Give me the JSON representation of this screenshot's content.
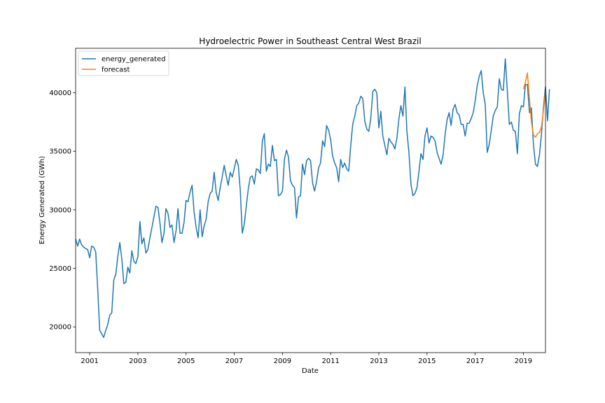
{
  "chart_data": {
    "type": "line",
    "title": "Hydroelectric Power in Southeast Central West Brazil",
    "xlabel": "Date",
    "ylabel": "Energy Generated (GWh)",
    "xlim": [
      "2000-06",
      "2019-12"
    ],
    "ylim": [
      17800,
      43800
    ],
    "grid": false,
    "legend_position": "top-left",
    "x_ticks": [
      "2001",
      "2003",
      "2005",
      "2007",
      "2009",
      "2011",
      "2013",
      "2015",
      "2017",
      "2019"
    ],
    "y_ticks": [
      20000,
      25000,
      30000,
      35000,
      40000
    ],
    "series": [
      {
        "name": "energy_generated",
        "color": "#1f77b4",
        "start": "2000-06",
        "frequency": "monthly",
        "values": [
          27500,
          26900,
          27500,
          27000,
          26800,
          26700,
          26600,
          25900,
          26900,
          26800,
          26400,
          23300,
          19700,
          19400,
          19100,
          19700,
          20200,
          21000,
          21200,
          24000,
          24500,
          26000,
          27200,
          25800,
          23700,
          23800,
          25100,
          24600,
          26500,
          25600,
          25400,
          26000,
          29000,
          27100,
          27600,
          26300,
          26600,
          27600,
          28500,
          29400,
          30300,
          30200,
          28900,
          27200,
          28000,
          30100,
          29700,
          28500,
          28700,
          27200,
          28200,
          30100,
          28000,
          28000,
          28900,
          30800,
          30700,
          31500,
          32100,
          29800,
          28500,
          27600,
          30000,
          27700,
          28600,
          29200,
          30700,
          31400,
          31600,
          33200,
          31500,
          30800,
          31900,
          32800,
          33800,
          32900,
          32100,
          33200,
          32800,
          33500,
          34300,
          33800,
          31700,
          28000,
          28800,
          30300,
          31800,
          32800,
          32900,
          32200,
          33500,
          33400,
          33100,
          35900,
          36500,
          33300,
          33900,
          33700,
          35500,
          34200,
          34300,
          31200,
          31300,
          31600,
          34300,
          35100,
          34500,
          32500,
          32100,
          31900,
          29300,
          31100,
          31200,
          33900,
          33000,
          34200,
          34400,
          34200,
          32300,
          31600,
          32400,
          33600,
          34000,
          35900,
          35400,
          37200,
          36800,
          36000,
          34600,
          34000,
          33600,
          32400,
          34300,
          33600,
          34000,
          33500,
          33300,
          35500,
          37300,
          38000,
          38900,
          39100,
          39700,
          39500,
          37600,
          36900,
          36700,
          37800,
          40100,
          40300,
          40000,
          37000,
          38400,
          36300,
          35500,
          34700,
          36100,
          35800,
          35600,
          35200,
          36100,
          37800,
          38900,
          38000,
          40500,
          36700,
          34900,
          32200,
          31200,
          31400,
          31900,
          33300,
          34800,
          34300,
          36300,
          37000,
          35700,
          36300,
          36200,
          35900,
          34900,
          34400,
          33900,
          34700,
          36400,
          37700,
          38300,
          37200,
          38600,
          39000,
          38300,
          38100,
          37300,
          37300,
          36300,
          37400,
          37400,
          37800,
          38300,
          39300,
          40600,
          41400,
          41900,
          40000,
          39000,
          34900,
          35600,
          36800,
          38000,
          38500,
          38800,
          41200,
          40300,
          40200,
          42900,
          40200,
          37300,
          37500,
          36800,
          36700,
          34800,
          38200,
          38900,
          38800,
          40700,
          40700,
          38300,
          38700,
          35600,
          33900,
          33700,
          34700,
          36500,
          38800,
          40500,
          37600,
          40300
        ]
      },
      {
        "name": "forecast",
        "color": "#ff7f0e",
        "start": "2019-01",
        "frequency": "monthly",
        "values": [
          40300,
          40900,
          41700,
          39500,
          37500,
          36400,
          36200,
          36500,
          36600,
          37100,
          38500,
          40100
        ]
      }
    ]
  }
}
